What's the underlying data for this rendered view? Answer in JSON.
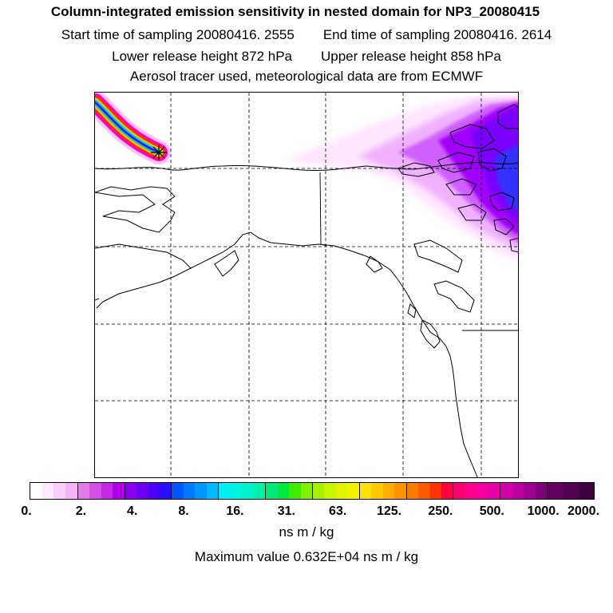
{
  "header": {
    "title": "Column-integrated emission sensitivity in nested domain for NP3_20080415",
    "start_time": "Start time of sampling 20080416.  2555",
    "end_time": "End time of sampling 20080416.  2614",
    "lower_release": "Lower release height  872 hPa",
    "upper_release": "Upper release height  858 hPa",
    "tracer_info": "Aerosol tracer used, meteorological data are from ECMWF"
  },
  "map": {
    "grid": true,
    "release_marker": "asterisk-marker",
    "plume_colors": [
      "#ffe6ff",
      "#f0b0ff",
      "#d060ff",
      "#a000ff",
      "#7a00ff",
      "#3030ff"
    ]
  },
  "colorbar": {
    "tick_labels": [
      "0.",
      "2.",
      "4.",
      "8.",
      "16.",
      "31.",
      "63.",
      "125.",
      "250.",
      "500.",
      "1000.",
      "2000."
    ],
    "segments": [
      [
        "#ffffff",
        "#fde8fd",
        "#f8cdf8",
        "#f2b2f4"
      ],
      [
        "#e07ae8",
        "#d64de6",
        "#c427e6",
        "#b000e8"
      ],
      [
        "#8a00f0",
        "#6a00f4",
        "#4a00f8",
        "#2a10fa"
      ],
      [
        "#0058ff",
        "#0078ff",
        "#0098ff",
        "#00b8ff"
      ],
      [
        "#00eef6",
        "#00f4e0",
        "#00f2c8",
        "#00eeaa"
      ],
      [
        "#00e878",
        "#00e840",
        "#40ec00",
        "#80f000"
      ],
      [
        "#a8f000",
        "#c8f400",
        "#e0f400",
        "#f4f000"
      ],
      [
        "#ffe000",
        "#ffc800",
        "#ffae00",
        "#ff9400"
      ],
      [
        "#ff7a00",
        "#ff5a00",
        "#ff3400",
        "#ff0040"
      ],
      [
        "#ff0070",
        "#ff0090",
        "#f400a0",
        "#e800a8"
      ],
      [
        "#d400a8",
        "#bc00a0",
        "#a00094",
        "#7c0078"
      ],
      [
        "#640064",
        "#520050",
        "#3e003e"
      ]
    ],
    "units": "ns m / kg",
    "max_value": "Maximum value  0.632E+04 ns m / kg"
  }
}
